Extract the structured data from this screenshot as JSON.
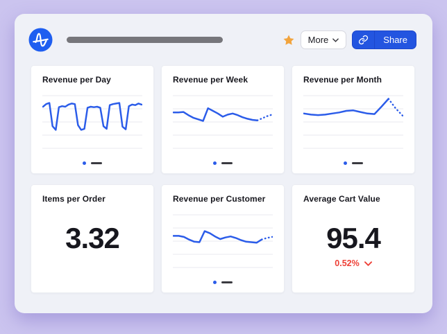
{
  "header": {
    "logo": "amplitude-logo",
    "title_placeholder": "redacted-dashboard-title",
    "favorite_icon": "star",
    "more_button": {
      "label": "More"
    },
    "share_button": {
      "label": "Share",
      "icon": "link"
    }
  },
  "colors": {
    "page_bg": "#cbc4ef",
    "panel_bg": "#eff1f7",
    "card_bg": "#ffffff",
    "line_blue": "#2b5ce9",
    "logo_blue": "#1e5ef0",
    "grid_line": "#e9eaef",
    "legend_dash": "#3a3a40",
    "star_gold": "#f2a43d",
    "delta_red": "#ee4037",
    "share_blue": "#2355e0",
    "title_text": "#17171e"
  },
  "chart_data": [
    {
      "type": "line",
      "title": "Revenue per Day",
      "values": [
        79,
        84,
        86,
        42,
        35,
        78,
        80,
        79,
        83,
        85,
        84,
        44,
        35,
        37,
        77,
        79,
        78,
        79,
        77,
        42,
        37,
        82,
        84,
        85,
        86,
        41,
        36,
        80,
        83,
        82,
        85,
        83
      ],
      "dotted_from": null,
      "ylim": [
        0,
        100
      ],
      "grid": true,
      "legend": "dot-dash"
    },
    {
      "type": "line",
      "title": "Revenue per Week",
      "values": [
        68,
        68,
        69,
        63,
        58,
        55,
        52,
        76,
        71,
        66,
        60,
        64,
        66,
        63,
        59,
        56,
        54,
        53,
        57,
        61,
        64
      ],
      "dotted_from": 17,
      "ylim": [
        0,
        100
      ],
      "grid": true,
      "legend": "dot-dash"
    },
    {
      "type": "line",
      "title": "Revenue per Month",
      "values": [
        66,
        64,
        63,
        64,
        66,
        68,
        71,
        72,
        69,
        66,
        65,
        79,
        94,
        76,
        62
      ],
      "dotted_from": 12,
      "ylim": [
        0,
        100
      ],
      "grid": true,
      "legend": "dot-dash"
    },
    {
      "type": "metric",
      "title": "Items per Order",
      "value": "3.32"
    },
    {
      "type": "line",
      "title": "Revenue per Customer",
      "values": [
        60,
        60,
        58,
        53,
        49,
        48,
        69,
        65,
        59,
        54,
        57,
        59,
        56,
        52,
        49,
        48,
        47,
        53,
        56,
        58
      ],
      "dotted_from": 17,
      "ylim": [
        0,
        100
      ],
      "grid": true,
      "legend": "dot-dash"
    },
    {
      "type": "metric",
      "title": "Average Cart Value",
      "value": "95.4",
      "delta": "0.52%",
      "delta_direction": "down"
    }
  ]
}
